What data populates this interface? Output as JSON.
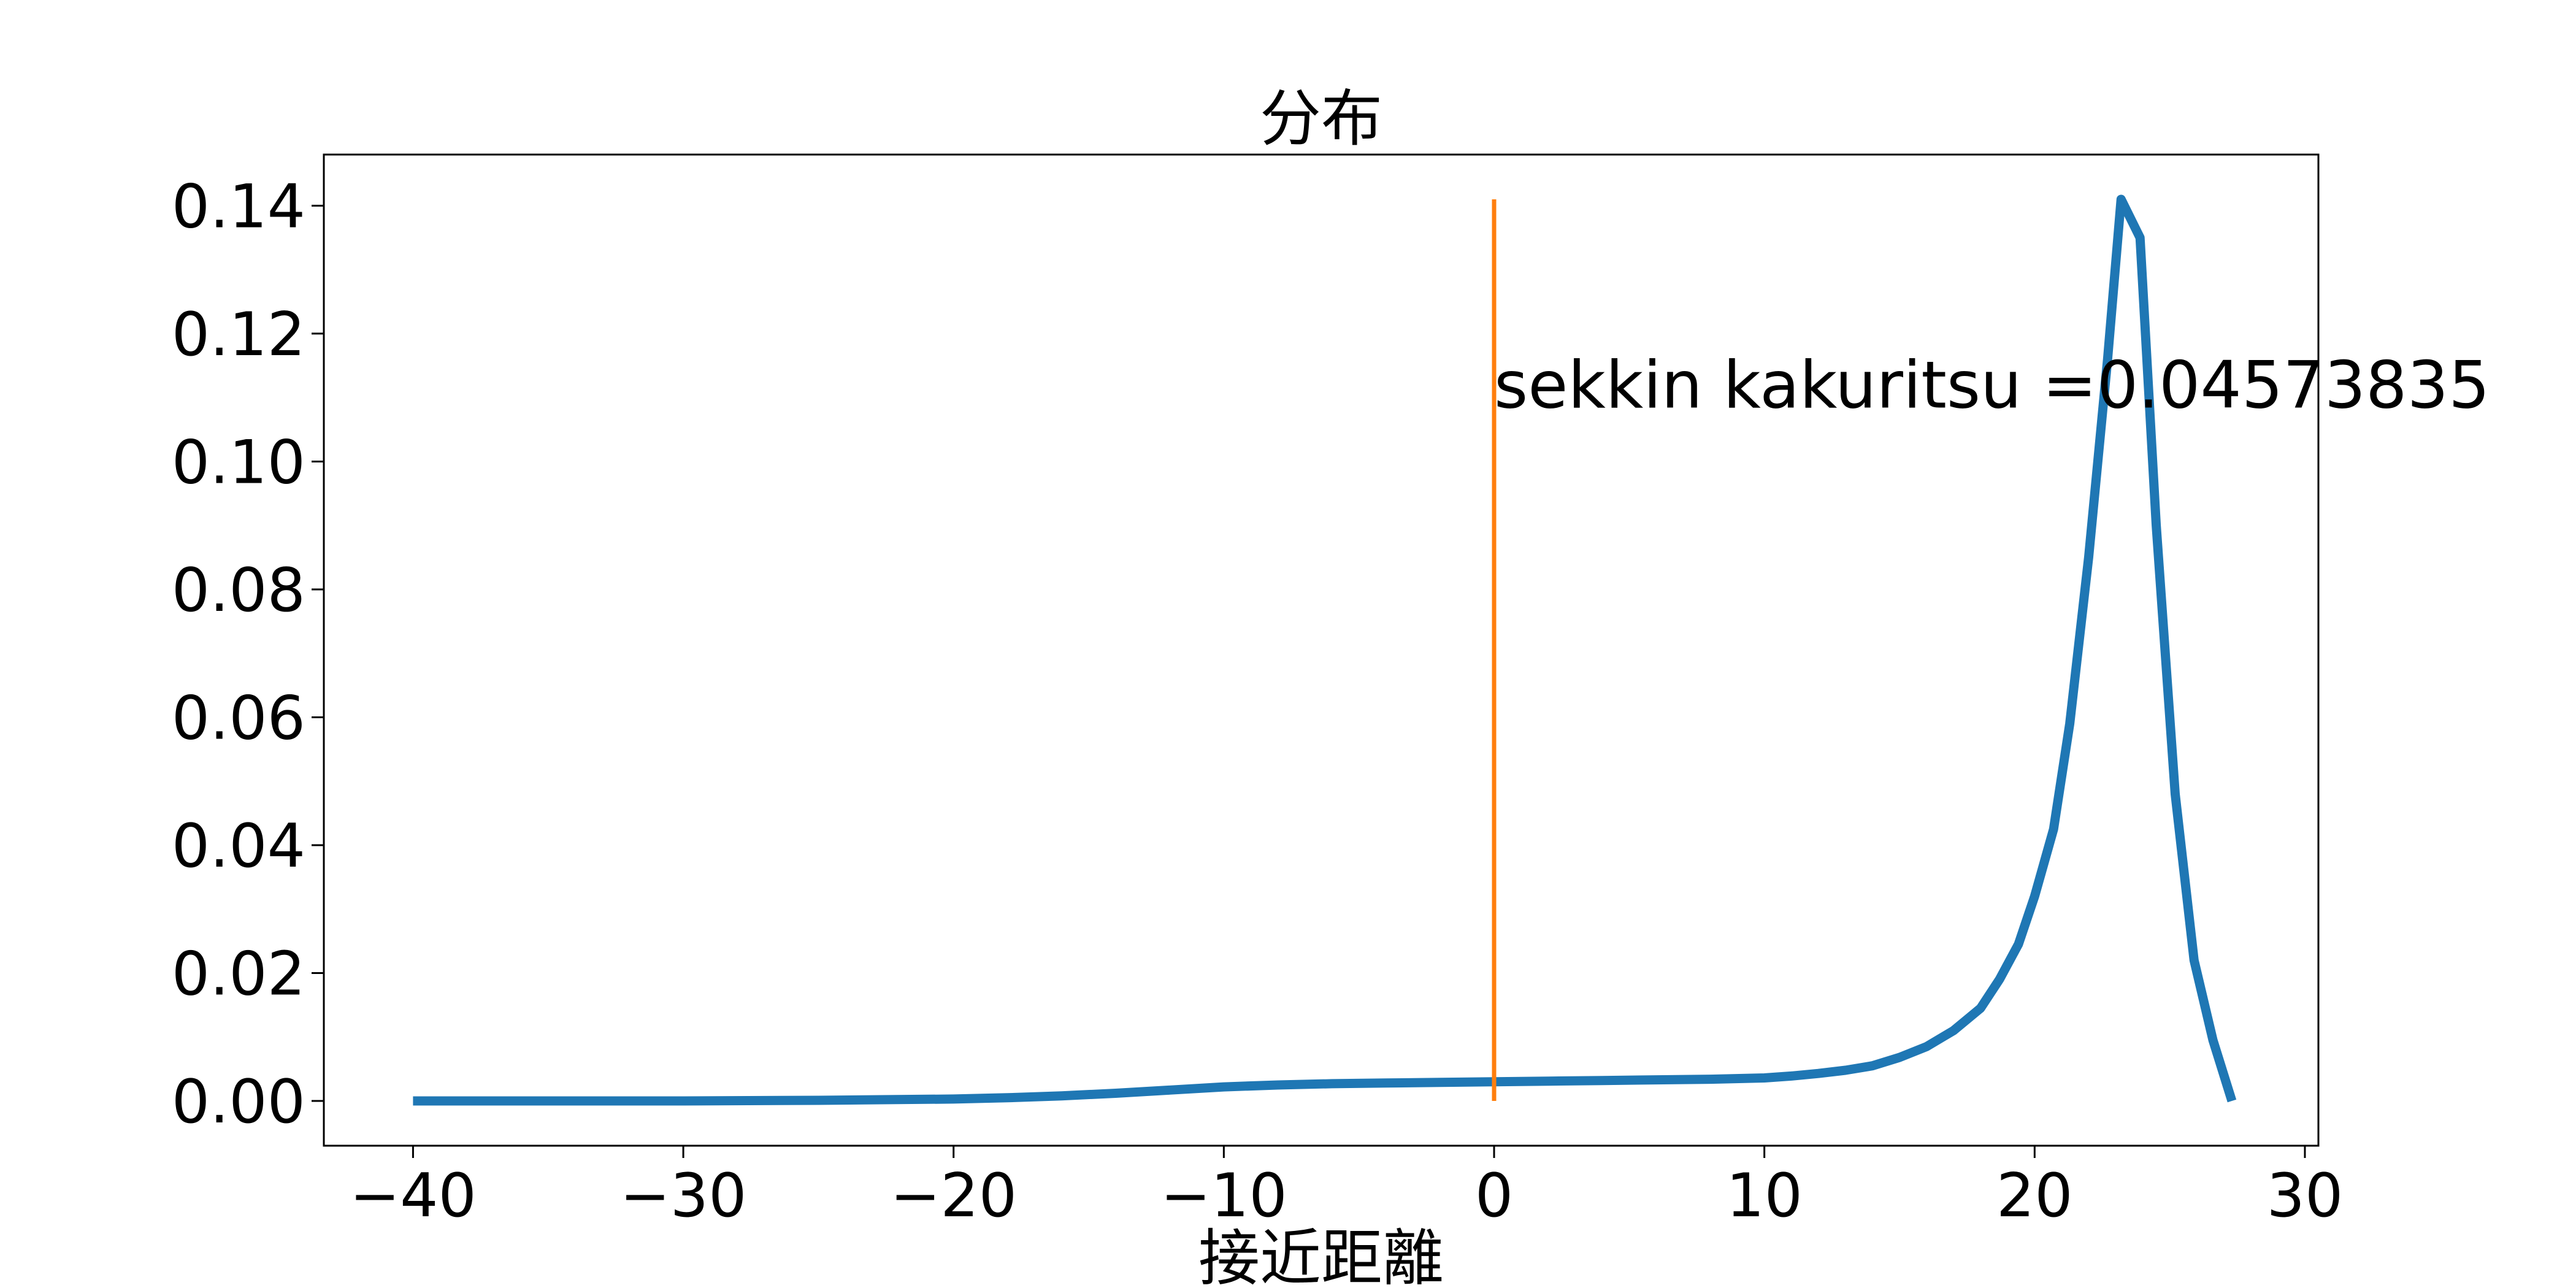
{
  "chart_data": {
    "type": "line",
    "title": "分布",
    "xlabel": "接近距離",
    "ylabel": "",
    "xlim": [
      -43.3,
      30.5
    ],
    "ylim": [
      -0.007,
      0.148
    ],
    "grid": false,
    "legend": "none",
    "x_ticks": [
      -40,
      -30,
      -20,
      -10,
      0,
      10,
      20,
      30
    ],
    "x_tick_labels": [
      "−40",
      "−30",
      "−20",
      "−10",
      "0",
      "10",
      "20",
      "30"
    ],
    "y_ticks": [
      0.0,
      0.02,
      0.04,
      0.06,
      0.08,
      0.1,
      0.12,
      0.14
    ],
    "y_tick_labels": [
      "0.00",
      "0.02",
      "0.04",
      "0.06",
      "0.08",
      "0.10",
      "0.12",
      "0.14"
    ],
    "series": [
      {
        "color": "#1f77b4",
        "x": [
          -40,
          -35,
          -30,
          -25,
          -20,
          -18,
          -16,
          -14,
          -12,
          -10,
          -8,
          -6,
          -4,
          -2,
          0,
          2,
          4,
          6,
          8,
          10,
          11,
          12,
          13,
          14,
          15,
          16,
          17,
          18,
          18.7,
          19.4,
          20,
          20.7,
          21.3,
          22,
          22.7,
          23.2,
          23.9,
          24.5,
          25.2,
          25.9,
          26.6,
          27.3
        ],
        "y": [
          0.0,
          0.0,
          0.0,
          0.0001,
          0.0003,
          0.0005,
          0.0008,
          0.0012,
          0.0017,
          0.0022,
          0.0025,
          0.0027,
          0.0028,
          0.0029,
          0.003,
          0.0031,
          0.0032,
          0.0033,
          0.0034,
          0.0036,
          0.0039,
          0.0043,
          0.0048,
          0.0055,
          0.0068,
          0.0085,
          0.011,
          0.0145,
          0.019,
          0.0245,
          0.032,
          0.0425,
          0.059,
          0.085,
          0.116,
          0.141,
          0.135,
          0.09,
          0.048,
          0.022,
          0.0095,
          0.0
        ]
      }
    ],
    "vline": {
      "x": 0,
      "y": [
        0.0,
        0.141
      ],
      "color": "#ff7f0e"
    },
    "annotation": {
      "text": "sekkin kakuritsu =0.04573835",
      "x": 0,
      "y": 0.112
    }
  }
}
